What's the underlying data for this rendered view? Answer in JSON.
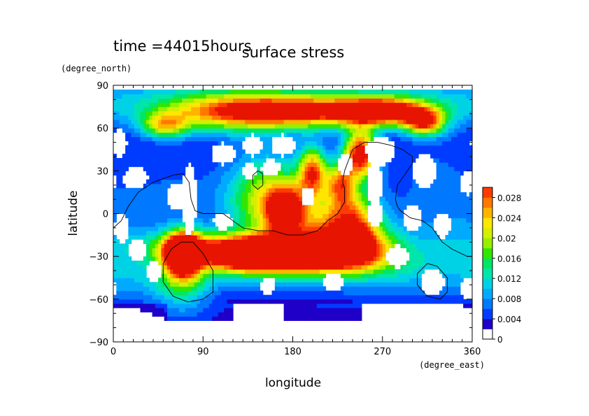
{
  "header": {
    "time_label": "time =44015hours",
    "title": "surface stress"
  },
  "chart_data": {
    "type": "heatmap",
    "title": "surface stress",
    "subtitle": "time =44015hours",
    "xlabel": "longitude",
    "xunits": "(degree_east)",
    "ylabel": "latitude",
    "yunits": "(degree_north)",
    "xlim": [
      0,
      360
    ],
    "ylim": [
      -90,
      90
    ],
    "xticks": [
      "0",
      "90",
      "180",
      "270",
      "360"
    ],
    "yticks": [
      "90",
      "60",
      "30",
      "0",
      "−30",
      "−60",
      "−90"
    ],
    "xtick_values": [
      0,
      90,
      180,
      270,
      360
    ],
    "ytick_values": [
      90,
      60,
      30,
      0,
      -30,
      -60,
      -90
    ],
    "colorbar": {
      "levels": [
        0,
        0.002,
        0.004,
        0.006,
        0.008,
        0.01,
        0.012,
        0.014,
        0.016,
        0.018,
        0.02,
        0.022,
        0.024,
        0.026,
        0.028,
        0.03
      ],
      "colors": [
        "#ffffff",
        "#1e00c8",
        "#003cff",
        "#0078ff",
        "#00aaff",
        "#00d2e6",
        "#00e6aa",
        "#00e664",
        "#32e600",
        "#96f000",
        "#d2f000",
        "#ffe600",
        "#ffb400",
        "#ff7800",
        "#ff3c00",
        "#e61400"
      ],
      "tick_labels": [
        "0",
        "0.004",
        "0.008",
        "0.012",
        "0.016",
        "0.02",
        "0.024",
        "0.028"
      ],
      "tick_values": [
        0,
        0.004,
        0.008,
        0.012,
        0.016,
        0.02,
        0.024,
        0.028
      ]
    },
    "features": [
      {
        "lon": 0,
        "lat": 84,
        "w": 360,
        "h": 14,
        "amp": 0.006
      },
      {
        "lon": 180,
        "lat": 72,
        "w": 80,
        "h": 8,
        "amp": 0.026
      },
      {
        "lon": 270,
        "lat": 72,
        "w": 30,
        "h": 6,
        "amp": 0.024
      },
      {
        "lon": 312,
        "lat": 64,
        "w": 14,
        "h": 6,
        "amp": 0.022
      },
      {
        "lon": 52,
        "lat": 62,
        "w": 16,
        "h": 6,
        "amp": 0.016
      },
      {
        "lon": 120,
        "lat": 70,
        "w": 50,
        "h": 12,
        "amp": 0.008
      },
      {
        "lon": 248,
        "lat": 42,
        "w": 12,
        "h": 12,
        "amp": 0.03
      },
      {
        "lon": 200,
        "lat": 30,
        "w": 10,
        "h": 12,
        "amp": 0.022
      },
      {
        "lon": 228,
        "lat": 22,
        "w": 10,
        "h": 10,
        "amp": 0.018
      },
      {
        "lon": 165,
        "lat": 10,
        "w": 35,
        "h": 22,
        "amp": 0.01
      },
      {
        "lon": 172,
        "lat": 3,
        "w": 12,
        "h": 10,
        "amp": 0.022
      },
      {
        "lon": 150,
        "lat": 15,
        "w": 25,
        "h": 20,
        "amp": 0.008
      },
      {
        "lon": 200,
        "lat": -6,
        "w": 40,
        "h": 18,
        "amp": 0.01
      },
      {
        "lon": 70,
        "lat": -28,
        "w": 12,
        "h": 10,
        "amp": 0.04
      },
      {
        "lon": 85,
        "lat": -23,
        "w": 45,
        "h": 8,
        "amp": 0.012
      },
      {
        "lon": 175,
        "lat": -28,
        "w": 55,
        "h": 9,
        "amp": 0.034
      },
      {
        "lon": 135,
        "lat": -30,
        "w": 25,
        "h": 7,
        "amp": 0.018
      },
      {
        "lon": 238,
        "lat": -22,
        "w": 30,
        "h": 12,
        "amp": 0.02
      },
      {
        "lon": 240,
        "lat": -2,
        "w": 18,
        "h": 14,
        "amp": 0.016
      },
      {
        "lon": 70,
        "lat": -48,
        "w": 20,
        "h": 15,
        "amp": 0.01
      },
      {
        "lon": 200,
        "lat": -42,
        "w": 150,
        "h": 12,
        "amp": 0.005
      },
      {
        "lon": 60,
        "lat": 10,
        "w": 40,
        "h": 25,
        "amp": 0.004
      },
      {
        "lon": 320,
        "lat": 25,
        "w": 40,
        "h": 30,
        "amp": 0.004
      },
      {
        "lon": 20,
        "lat": -45,
        "w": 30,
        "h": 15,
        "amp": 0.004
      },
      {
        "lon": 340,
        "lat": -15,
        "w": 35,
        "h": 15,
        "amp": 0.004
      },
      {
        "lon": 300,
        "lat": -40,
        "w": 40,
        "h": 15,
        "amp": 0.003
      }
    ],
    "mask": [
      {
        "lon": 22,
        "lat": 25,
        "w": 10,
        "h": 6
      },
      {
        "lon": 76,
        "lat": 10,
        "w": 6,
        "h": 20
      },
      {
        "lon": 62,
        "lat": 12,
        "w": 7,
        "h": 8
      },
      {
        "lon": 8,
        "lat": -10,
        "w": 6,
        "h": 8
      },
      {
        "lon": 24,
        "lat": -25,
        "w": 7,
        "h": 6
      },
      {
        "lon": 110,
        "lat": 42,
        "w": 10,
        "h": 6
      },
      {
        "lon": 140,
        "lat": 48,
        "w": 8,
        "h": 6
      },
      {
        "lon": 170,
        "lat": 48,
        "w": 10,
        "h": 6
      },
      {
        "lon": 158,
        "lat": 32,
        "w": 8,
        "h": 5
      },
      {
        "lon": 136,
        "lat": 30,
        "w": 6,
        "h": 5
      },
      {
        "lon": 232,
        "lat": 34,
        "w": 6,
        "h": 6
      },
      {
        "lon": 268,
        "lat": 44,
        "w": 12,
        "h": 8
      },
      {
        "lon": 262,
        "lat": 20,
        "w": 6,
        "h": 14
      },
      {
        "lon": 262,
        "lat": 0,
        "w": 6,
        "h": 8
      },
      {
        "lon": 312,
        "lat": 30,
        "w": 10,
        "h": 10
      },
      {
        "lon": 355,
        "lat": 22,
        "w": 6,
        "h": 7
      },
      {
        "lon": 300,
        "lat": -3,
        "w": 7,
        "h": 7
      },
      {
        "lon": 330,
        "lat": -8,
        "w": 7,
        "h": 7
      },
      {
        "lon": 110,
        "lat": -5,
        "w": 8,
        "h": 5
      },
      {
        "lon": 195,
        "lat": 12,
        "w": 6,
        "h": 5
      },
      {
        "lon": 220,
        "lat": -48,
        "w": 8,
        "h": 5
      },
      {
        "lon": 155,
        "lat": -50,
        "w": 6,
        "h": 5
      },
      {
        "lon": 285,
        "lat": -30,
        "w": 10,
        "h": 6
      },
      {
        "lon": 320,
        "lat": -48,
        "w": 10,
        "h": 8
      },
      {
        "lon": 355,
        "lat": -52,
        "w": 6,
        "h": 6
      },
      {
        "lon": 40,
        "lat": -40,
        "w": 6,
        "h": 6
      },
      {
        "lon": 6,
        "lat": 50,
        "w": 6,
        "h": 8
      }
    ],
    "coastlines": [
      [
        [
          0,
          -10
        ],
        [
          8,
          -5
        ],
        [
          15,
          5
        ],
        [
          25,
          15
        ],
        [
          40,
          22
        ],
        [
          60,
          27
        ],
        [
          70,
          28
        ],
        [
          76,
          22
        ],
        [
          78,
          10
        ],
        [
          82,
          2
        ],
        [
          90,
          0
        ],
        [
          110,
          0
        ],
        [
          120,
          -5
        ],
        [
          130,
          -10
        ],
        [
          145,
          -12
        ],
        [
          160,
          -12
        ],
        [
          175,
          -15
        ],
        [
          190,
          -15
        ],
        [
          205,
          -12
        ],
        [
          215,
          -5
        ],
        [
          225,
          0
        ],
        [
          232,
          8
        ],
        [
          232,
          18
        ],
        [
          230,
          22
        ],
        [
          232,
          30
        ],
        [
          240,
          45
        ],
        [
          252,
          50
        ],
        [
          265,
          50
        ],
        [
          278,
          48
        ],
        [
          290,
          45
        ],
        [
          300,
          40
        ],
        [
          300,
          35
        ],
        [
          295,
          30
        ],
        [
          290,
          25
        ],
        [
          285,
          20
        ],
        [
          283,
          10
        ],
        [
          285,
          5
        ],
        [
          288,
          2
        ],
        [
          298,
          -3
        ],
        [
          310,
          -5
        ],
        [
          320,
          -10
        ],
        [
          330,
          -20
        ],
        [
          340,
          -25
        ],
        [
          355,
          -30
        ],
        [
          360,
          -30
        ]
      ],
      [
        [
          68,
          -20
        ],
        [
          80,
          -20
        ],
        [
          90,
          -28
        ],
        [
          100,
          -40
        ],
        [
          100,
          -55
        ],
        [
          90,
          -60
        ],
        [
          75,
          -62
        ],
        [
          60,
          -58
        ],
        [
          50,
          -48
        ],
        [
          50,
          -35
        ],
        [
          58,
          -25
        ],
        [
          68,
          -20
        ]
      ],
      [
        [
          145,
          30
        ],
        [
          150,
          28
        ],
        [
          150,
          20
        ],
        [
          145,
          17
        ],
        [
          140,
          20
        ],
        [
          140,
          27
        ],
        [
          145,
          30
        ]
      ],
      [
        [
          315,
          -35
        ],
        [
          325,
          -37
        ],
        [
          335,
          -45
        ],
        [
          335,
          -55
        ],
        [
          328,
          -60
        ],
        [
          315,
          -58
        ],
        [
          305,
          -50
        ],
        [
          305,
          -42
        ],
        [
          315,
          -35
        ]
      ]
    ]
  }
}
